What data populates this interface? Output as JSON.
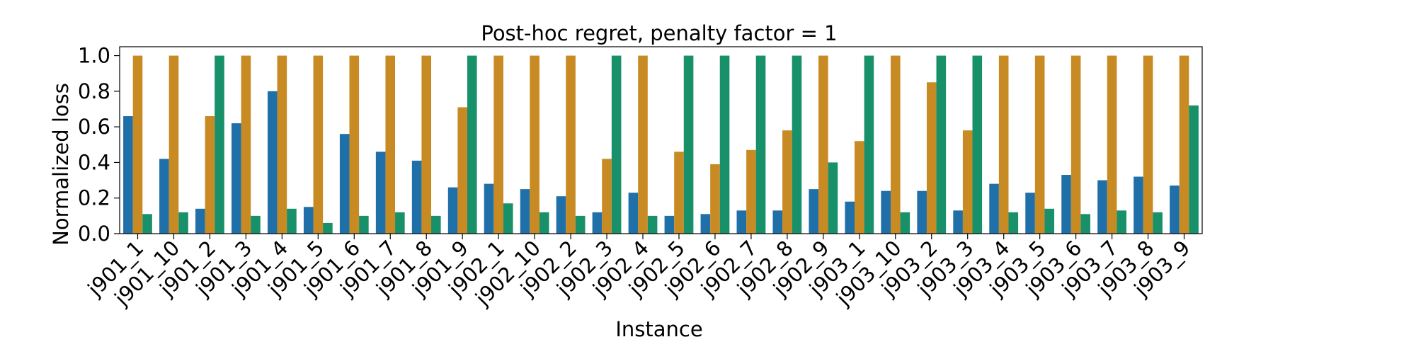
{
  "chart_data": {
    "type": "bar",
    "title": "Post-hoc regret, penalty factor = 1",
    "xlabel": "Instance",
    "ylabel": "Normalized loss",
    "ylim": [
      0,
      1.05
    ],
    "yticks": [
      "0.0",
      "0.2",
      "0.4",
      "0.6",
      "0.8",
      "1.0"
    ],
    "grid": false,
    "categories": [
      "j901_1",
      "j901_10",
      "j901_2",
      "j901_3",
      "j901_4",
      "j901_5",
      "j901_6",
      "j901_7",
      "j901_8",
      "j901_9",
      "j902_1",
      "j902_10",
      "j902_2",
      "j902_3",
      "j902_4",
      "j902_5",
      "j902_6",
      "j902_7",
      "j902_8",
      "j902_9",
      "j903_1",
      "j903_10",
      "j903_2",
      "j903_3",
      "j903_4",
      "j903_5",
      "j903_6",
      "j903_7",
      "j903_8",
      "j903_9"
    ],
    "series": [
      {
        "color": "#1f6fa8",
        "values": [
          0.66,
          0.42,
          0.14,
          0.62,
          0.8,
          0.15,
          0.56,
          0.46,
          0.41,
          0.26,
          0.28,
          0.25,
          0.21,
          0.12,
          0.23,
          0.1,
          0.11,
          0.13,
          0.13,
          0.25,
          0.18,
          0.24,
          0.24,
          0.13,
          0.28,
          0.23,
          0.33,
          0.3,
          0.32,
          0.27
        ]
      },
      {
        "color": "#c88a22",
        "values": [
          1.0,
          1.0,
          0.66,
          1.0,
          1.0,
          1.0,
          1.0,
          1.0,
          1.0,
          0.71,
          1.0,
          1.0,
          1.0,
          0.42,
          1.0,
          0.46,
          0.39,
          0.47,
          0.58,
          1.0,
          0.52,
          1.0,
          0.85,
          0.58,
          1.0,
          1.0,
          1.0,
          1.0,
          1.0,
          1.0
        ]
      },
      {
        "color": "#18906a",
        "values": [
          0.11,
          0.12,
          1.0,
          0.1,
          0.14,
          0.06,
          0.1,
          0.12,
          0.1,
          1.0,
          0.17,
          0.12,
          0.1,
          1.0,
          0.1,
          1.0,
          1.0,
          1.0,
          1.0,
          0.4,
          1.0,
          0.12,
          1.0,
          1.0,
          0.12,
          0.14,
          0.11,
          0.13,
          0.12,
          0.72
        ]
      }
    ]
  }
}
